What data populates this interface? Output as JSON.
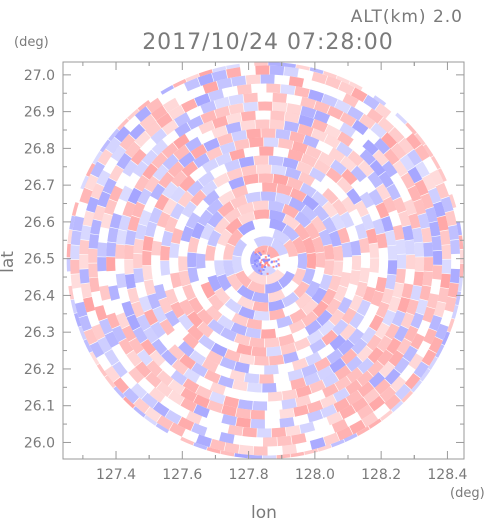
{
  "header": {
    "altitude_label": "ALT(km) 2.0",
    "timestamp": "2017/10/24 07:28:00"
  },
  "axes": {
    "y_unit": "(deg)",
    "x_unit": "(deg)",
    "y_label": "lat",
    "x_label": "lon"
  },
  "chart_data": {
    "type": "heatmap",
    "x_ticks": [
      "127.4",
      "127.6",
      "127.8",
      "128.0",
      "128.2",
      "128.4"
    ],
    "y_ticks": [
      "26.0",
      "26.1",
      "26.2",
      "26.3",
      "26.4",
      "26.5",
      "26.6",
      "26.7",
      "26.8",
      "26.9",
      "27.0"
    ],
    "xlim": [
      127.24,
      128.45
    ],
    "ylim": [
      25.955,
      27.035
    ],
    "center": {
      "lon": 127.85,
      "lat": 26.495
    },
    "radius_deg_lat": 0.54,
    "colors": {
      "positive": "#ff8f8f",
      "negative": "#8f8fff",
      "neutral": "#ffffff",
      "axis": "#999999"
    },
    "grid": false,
    "legend": "none"
  }
}
